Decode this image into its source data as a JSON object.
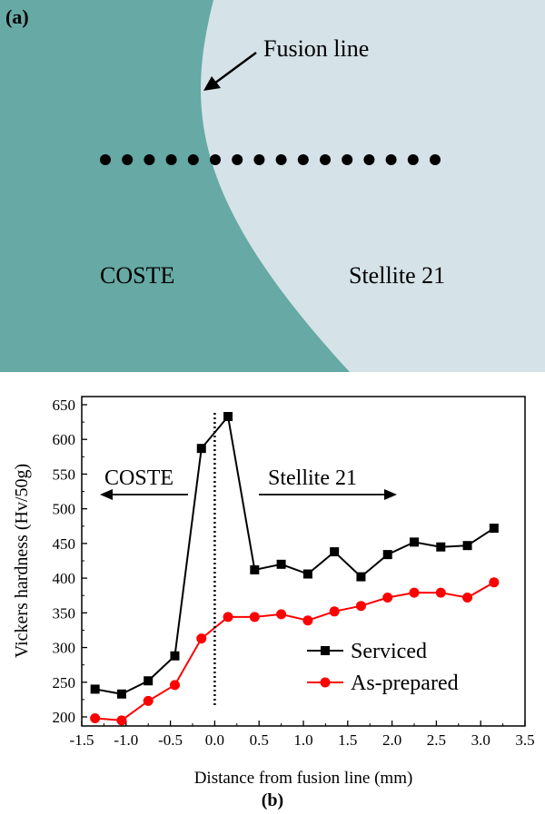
{
  "panel_a": {
    "label": "(a)",
    "annotation": "Fusion line",
    "left_region_label": "COSTE",
    "right_region_label": "Stellite 21",
    "colors": {
      "coste": "#66a9a5",
      "stellite": "#d5e2e7"
    },
    "indent_points": 16
  },
  "panel_b_label": "(b)",
  "chart_data": {
    "type": "line",
    "xlabel": "Distance from fusion line (mm)",
    "ylabel": "Vickers hardness (Hv/50g)",
    "xlim": [
      -1.5,
      3.5
    ],
    "ylim": [
      190,
      650
    ],
    "xticks": [
      "-1.5",
      "-1.0",
      "-0.5",
      "0.0",
      "0.5",
      "1.0",
      "1.5",
      "2.0",
      "2.5",
      "3.0",
      "3.5"
    ],
    "yticks": [
      "200",
      "250",
      "300",
      "350",
      "400",
      "450",
      "500",
      "550",
      "600",
      "650"
    ],
    "region_labels": {
      "left": "COSTE",
      "right": "Stellite 21"
    },
    "legend_position": "bottom-right",
    "fusion_line_x": 0,
    "series": [
      {
        "name": "Serviced",
        "color": "#000000",
        "marker": "square",
        "x": [
          -1.35,
          -1.05,
          -0.75,
          -0.45,
          -0.15,
          0.15,
          0.45,
          0.75,
          1.05,
          1.35,
          1.65,
          1.95,
          2.25,
          2.55,
          2.85,
          3.15
        ],
        "values": [
          240,
          233,
          252,
          288,
          587,
          633,
          412,
          420,
          406,
          438,
          402,
          434,
          452,
          445,
          447,
          472
        ]
      },
      {
        "name": "As-prepared",
        "color": "#ff0000",
        "marker": "circle",
        "x": [
          -1.35,
          -1.05,
          -0.75,
          -0.45,
          -0.15,
          0.15,
          0.45,
          0.75,
          1.05,
          1.35,
          1.65,
          1.95,
          2.25,
          2.55,
          2.85,
          3.15
        ],
        "values": [
          198,
          195,
          223,
          246,
          313,
          344,
          344,
          348,
          339,
          352,
          360,
          372,
          379,
          379,
          372,
          394
        ]
      }
    ]
  }
}
